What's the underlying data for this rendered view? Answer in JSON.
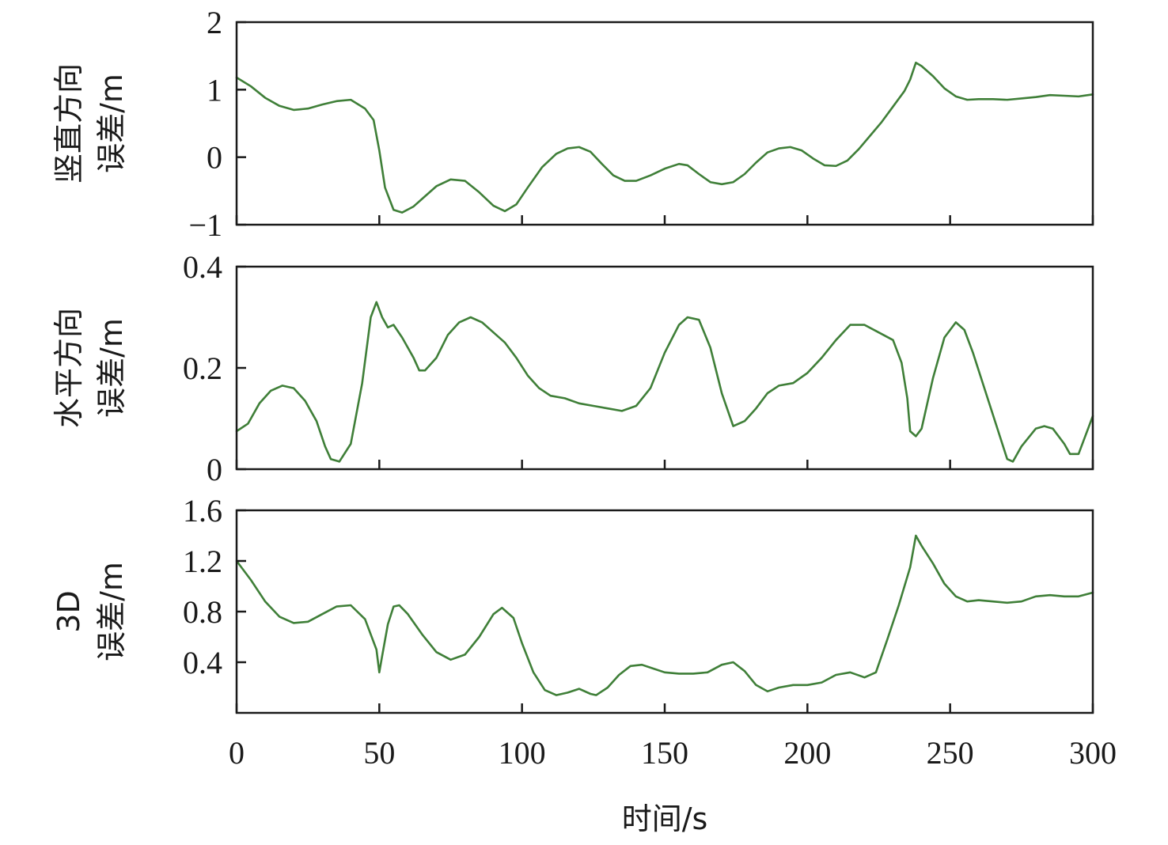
{
  "chart_data": [
    {
      "type": "line",
      "ylabel_line1": "竖直方向",
      "ylabel_line2": "误差/m",
      "xlim": [
        0,
        300
      ],
      "ylim": [
        -1,
        2
      ],
      "yticks": [
        -1,
        0,
        1,
        2
      ],
      "ytick_labels": [
        "−1",
        "0",
        "1",
        "2"
      ],
      "color": "#3f7f38",
      "series": [
        {
          "x": [
            0,
            5,
            10,
            15,
            20,
            25,
            30,
            35,
            40,
            45,
            48,
            50,
            52,
            55,
            58,
            62,
            66,
            70,
            75,
            80,
            85,
            90,
            94,
            98,
            102,
            107,
            112,
            116,
            120,
            124,
            128,
            132,
            136,
            140,
            145,
            150,
            155,
            158,
            162,
            166,
            170,
            174,
            178,
            182,
            186,
            190,
            194,
            198,
            202,
            206,
            210,
            214,
            218,
            222,
            226,
            230,
            234,
            236,
            238,
            240,
            244,
            248,
            252,
            256,
            260,
            265,
            270,
            275,
            280,
            285,
            290,
            295,
            300
          ],
          "y": [
            1.18,
            1.05,
            0.88,
            0.76,
            0.7,
            0.72,
            0.78,
            0.83,
            0.85,
            0.72,
            0.55,
            0.1,
            -0.45,
            -0.78,
            -0.82,
            -0.73,
            -0.58,
            -0.43,
            -0.33,
            -0.35,
            -0.52,
            -0.72,
            -0.8,
            -0.7,
            -0.45,
            -0.15,
            0.05,
            0.13,
            0.15,
            0.08,
            -0.1,
            -0.27,
            -0.35,
            -0.35,
            -0.27,
            -0.17,
            -0.1,
            -0.12,
            -0.25,
            -0.37,
            -0.4,
            -0.37,
            -0.25,
            -0.08,
            0.07,
            0.13,
            0.15,
            0.1,
            -0.02,
            -0.12,
            -0.13,
            -0.05,
            0.12,
            0.32,
            0.52,
            0.75,
            0.98,
            1.15,
            1.4,
            1.35,
            1.2,
            1.02,
            0.9,
            0.85,
            0.86,
            0.86,
            0.85,
            0.87,
            0.89,
            0.92,
            0.91,
            0.9,
            0.93
          ]
        }
      ]
    },
    {
      "type": "line",
      "ylabel_line1": "水平方向",
      "ylabel_line2": "误差/m",
      "xlim": [
        0,
        300
      ],
      "ylim": [
        0,
        0.4
      ],
      "yticks": [
        0,
        0.2,
        0.4
      ],
      "ytick_labels": [
        "0",
        "0.2",
        "0.4"
      ],
      "color": "#3f7f38",
      "series": [
        {
          "x": [
            0,
            4,
            8,
            12,
            16,
            20,
            24,
            28,
            31,
            33,
            36,
            40,
            44,
            47,
            49,
            51,
            53,
            55,
            58,
            62,
            64,
            66,
            70,
            74,
            78,
            82,
            86,
            90,
            94,
            98,
            102,
            106,
            110,
            115,
            120,
            125,
            130,
            135,
            140,
            145,
            150,
            155,
            158,
            162,
            166,
            170,
            174,
            178,
            182,
            186,
            190,
            195,
            200,
            205,
            210,
            215,
            220,
            225,
            230,
            233,
            235,
            236,
            238,
            240,
            244,
            248,
            252,
            255,
            258,
            262,
            266,
            270,
            272,
            275,
            280,
            283,
            286,
            290,
            292,
            295,
            300
          ],
          "y": [
            0.075,
            0.09,
            0.13,
            0.155,
            0.165,
            0.16,
            0.135,
            0.095,
            0.045,
            0.02,
            0.015,
            0.05,
            0.17,
            0.3,
            0.33,
            0.3,
            0.28,
            0.285,
            0.26,
            0.22,
            0.195,
            0.195,
            0.22,
            0.265,
            0.29,
            0.3,
            0.29,
            0.27,
            0.25,
            0.22,
            0.185,
            0.16,
            0.145,
            0.14,
            0.13,
            0.125,
            0.12,
            0.115,
            0.125,
            0.16,
            0.23,
            0.285,
            0.3,
            0.295,
            0.24,
            0.15,
            0.085,
            0.095,
            0.12,
            0.15,
            0.165,
            0.17,
            0.19,
            0.22,
            0.255,
            0.285,
            0.285,
            0.27,
            0.255,
            0.21,
            0.14,
            0.075,
            0.065,
            0.08,
            0.18,
            0.26,
            0.29,
            0.275,
            0.23,
            0.16,
            0.09,
            0.02,
            0.015,
            0.045,
            0.08,
            0.085,
            0.08,
            0.05,
            0.03,
            0.03,
            0.105
          ]
        }
      ]
    },
    {
      "type": "line",
      "ylabel_line1": "3D",
      "ylabel_line2": "误差/m",
      "xlim": [
        0,
        300
      ],
      "ylim": [
        0,
        1.6
      ],
      "yticks": [
        0.4,
        0.8,
        1.2,
        1.6
      ],
      "ytick_labels": [
        "0.4",
        "0.8",
        "1.2",
        "1.6"
      ],
      "color": "#3f7f38",
      "series": [
        {
          "x": [
            0,
            5,
            10,
            15,
            20,
            25,
            30,
            35,
            40,
            45,
            47,
            49,
            50,
            51,
            53,
            55,
            57,
            60,
            65,
            70,
            75,
            80,
            85,
            90,
            93,
            97,
            100,
            104,
            108,
            112,
            116,
            120,
            124,
            126,
            130,
            134,
            138,
            142,
            146,
            150,
            155,
            160,
            165,
            170,
            174,
            178,
            182,
            186,
            190,
            195,
            200,
            205,
            210,
            215,
            220,
            224,
            228,
            232,
            236,
            238,
            240,
            244,
            248,
            252,
            256,
            260,
            265,
            270,
            275,
            280,
            285,
            290,
            295,
            300
          ],
          "y": [
            1.2,
            1.05,
            0.88,
            0.76,
            0.71,
            0.72,
            0.78,
            0.84,
            0.85,
            0.74,
            0.62,
            0.5,
            0.32,
            0.45,
            0.7,
            0.84,
            0.85,
            0.78,
            0.62,
            0.48,
            0.42,
            0.46,
            0.6,
            0.78,
            0.83,
            0.75,
            0.55,
            0.32,
            0.18,
            0.14,
            0.16,
            0.19,
            0.15,
            0.14,
            0.2,
            0.3,
            0.37,
            0.38,
            0.35,
            0.32,
            0.31,
            0.31,
            0.32,
            0.38,
            0.4,
            0.33,
            0.22,
            0.17,
            0.2,
            0.22,
            0.22,
            0.24,
            0.3,
            0.32,
            0.28,
            0.32,
            0.58,
            0.85,
            1.15,
            1.4,
            1.32,
            1.18,
            1.02,
            0.92,
            0.88,
            0.89,
            0.88,
            0.87,
            0.88,
            0.92,
            0.93,
            0.92,
            0.92,
            0.95
          ]
        }
      ]
    }
  ],
  "x_axis": {
    "xlabel": "时间/s",
    "ticks": [
      0,
      50,
      100,
      150,
      200,
      250,
      300
    ],
    "tick_labels": [
      "0",
      "50",
      "100",
      "150",
      "200",
      "250",
      "300"
    ]
  }
}
